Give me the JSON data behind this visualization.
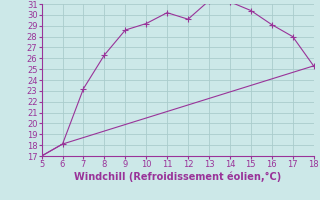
{
  "xlabel": "Windchill (Refroidissement éolien,°C)",
  "ylabel": "",
  "bg_color": "#cce8e8",
  "grid_color": "#aacccc",
  "line_color": "#993399",
  "xlim": [
    5,
    18
  ],
  "ylim": [
    17,
    31
  ],
  "xticks": [
    5,
    6,
    7,
    8,
    9,
    10,
    11,
    12,
    13,
    14,
    15,
    16,
    17,
    18
  ],
  "yticks": [
    17,
    18,
    19,
    20,
    21,
    22,
    23,
    24,
    25,
    26,
    27,
    28,
    29,
    30,
    31
  ],
  "curve1_x": [
    5,
    6,
    7,
    8,
    9,
    10,
    11,
    12,
    13,
    14,
    15,
    16,
    17,
    18
  ],
  "curve1_y": [
    17.0,
    18.1,
    23.2,
    26.3,
    28.6,
    29.2,
    30.2,
    29.6,
    31.3,
    31.2,
    30.4,
    29.1,
    28.0,
    25.3
  ],
  "curve2_x": [
    5,
    6,
    18
  ],
  "curve2_y": [
    17.0,
    18.1,
    25.3
  ],
  "tick_fontsize": 6,
  "xlabel_fontsize": 7,
  "marker_size": 2.0,
  "linewidth": 0.8
}
